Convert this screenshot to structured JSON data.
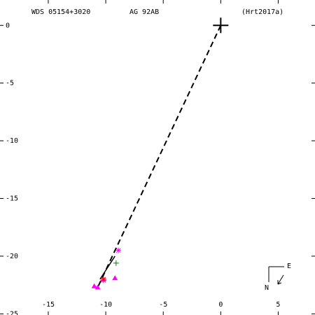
{
  "chart_data": {
    "type": "scatter",
    "header": [
      "WDS 05154+3020",
      "AG   92AB",
      "(Hrt2017a)"
    ],
    "compass": [
      "E",
      "N"
    ],
    "xlim": [
      -19.2,
      8.2
    ],
    "ylim": [
      -25.1,
      2.2
    ],
    "xticks": [
      -15,
      -10,
      -5,
      0,
      5
    ],
    "yticks": [
      0,
      -5,
      -10,
      -15,
      -20,
      -25
    ],
    "series": [
      {
        "color": "#000000",
        "marker": "line",
        "dash": true,
        "x": [
          0,
          -10.7
        ],
        "values": [
          0,
          -22.7
        ]
      },
      {
        "color": "#000000",
        "marker": "line",
        "dash": false,
        "x": [
          -9.2,
          -10.5
        ],
        "values": [
          -20.0,
          -22.0
        ]
      },
      {
        "color": "#000000",
        "marker": "bigplus",
        "x": [
          0
        ],
        "values": [
          0
        ]
      },
      {
        "color": "#ff00ff",
        "marker": "star",
        "x": [
          -8.9,
          -10.2
        ],
        "values": [
          -19.5,
          -22.1
        ]
      },
      {
        "color": "#ff0000",
        "marker": "star",
        "x": [
          -10.2
        ],
        "values": [
          -22.0
        ]
      },
      {
        "color": "#008000",
        "marker": "plus",
        "x": [
          -9.1
        ],
        "values": [
          -20.6
        ]
      },
      {
        "color": "#ff00ff",
        "marker": "triangle",
        "x": [
          -11.0,
          -10.7,
          -9.2
        ],
        "values": [
          -22.6,
          -22.7,
          -21.9
        ]
      }
    ]
  }
}
